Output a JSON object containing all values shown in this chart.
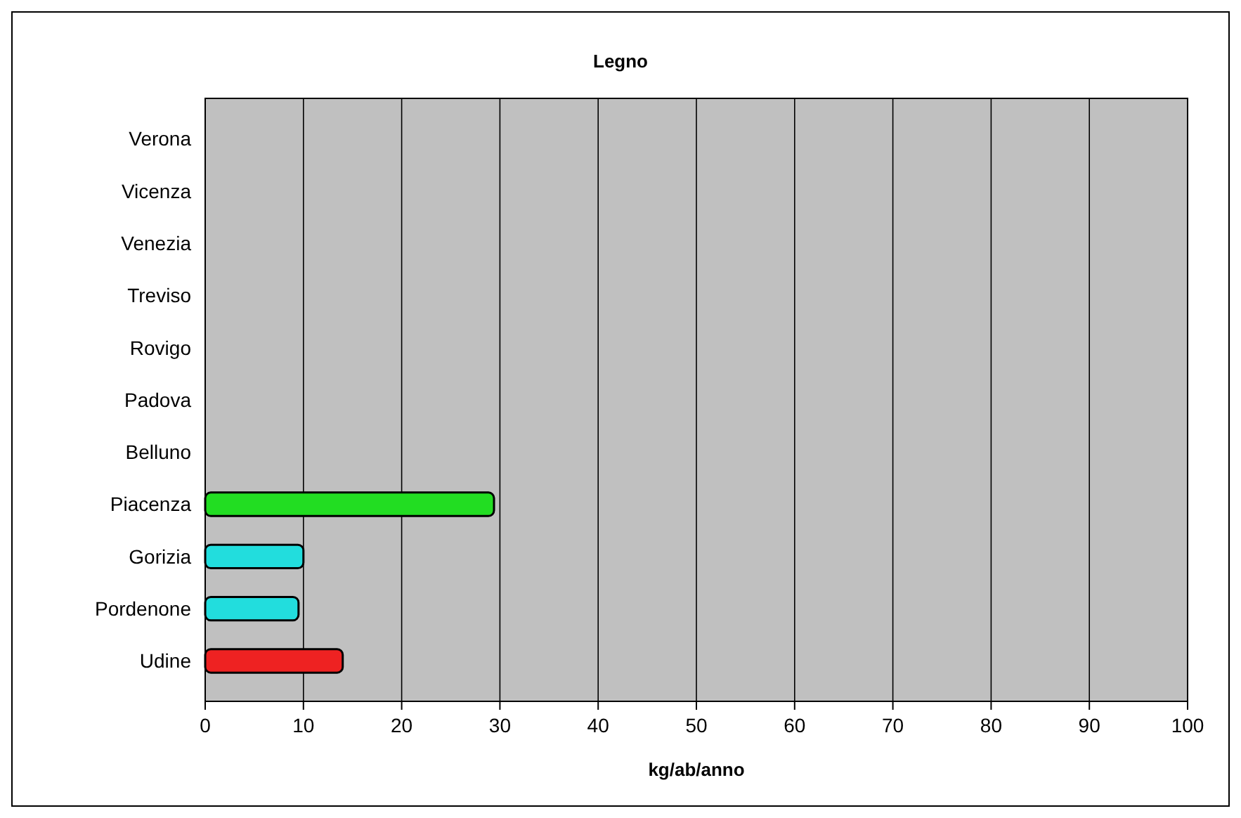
{
  "chart_data": {
    "type": "bar",
    "orientation": "horizontal",
    "title": "Legno",
    "xlabel": "kg/ab/anno",
    "categories": [
      "Verona",
      "Vicenza",
      "Venezia",
      "Treviso",
      "Rovigo",
      "Padova",
      "Belluno",
      "Piacenza",
      "Gorizia",
      "Pordenone",
      "Udine"
    ],
    "values": [
      null,
      null,
      null,
      null,
      null,
      null,
      null,
      29.4,
      10,
      9.5,
      14
    ],
    "colors": [
      null,
      null,
      null,
      null,
      null,
      null,
      null,
      "#22dd22",
      "#22dddd",
      "#22dddd",
      "#ee2222"
    ],
    "xlim": [
      0,
      100
    ],
    "xticks": [
      0,
      10,
      20,
      30,
      40,
      50,
      60,
      70,
      80,
      90,
      100
    ],
    "grid": "x"
  }
}
